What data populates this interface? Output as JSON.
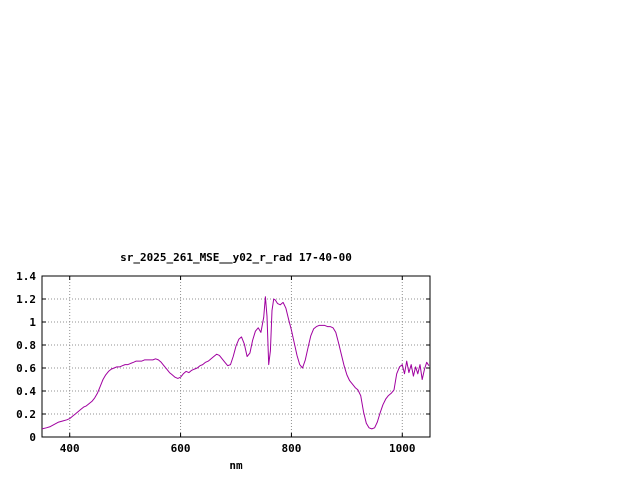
{
  "chart_data": {
    "type": "line",
    "title": "sr_2025_261_MSE__y02_r_rad 17-40-00",
    "xlabel": "nm",
    "ylabel": "",
    "xlim": [
      350,
      1050
    ],
    "ylim": [
      0,
      1.4
    ],
    "xticks": [
      400,
      600,
      800,
      1000
    ],
    "xtick_labels": [
      "400",
      "600",
      "800",
      "1000"
    ],
    "yticks": [
      0,
      0.2,
      0.4,
      0.6,
      0.8,
      1,
      1.2,
      1.4
    ],
    "ytick_labels": [
      "0",
      "0.2",
      "0.4",
      "0.6",
      "0.8",
      "1",
      "1.2",
      "1.4"
    ],
    "grid": true,
    "legend": "none",
    "line_color": "#a000a0",
    "grid_color": "#909090",
    "border_color": "#000000",
    "text_color": "#000000",
    "background_color": "#ffffff",
    "series": [
      {
        "points": [
          [
            350,
            0.07
          ],
          [
            358,
            0.08
          ],
          [
            365,
            0.09
          ],
          [
            372,
            0.11
          ],
          [
            380,
            0.13
          ],
          [
            388,
            0.14
          ],
          [
            395,
            0.15
          ],
          [
            400,
            0.16
          ],
          [
            405,
            0.18
          ],
          [
            410,
            0.2
          ],
          [
            415,
            0.22
          ],
          [
            420,
            0.24
          ],
          [
            425,
            0.26
          ],
          [
            430,
            0.27
          ],
          [
            435,
            0.29
          ],
          [
            440,
            0.31
          ],
          [
            445,
            0.34
          ],
          [
            450,
            0.38
          ],
          [
            455,
            0.44
          ],
          [
            460,
            0.5
          ],
          [
            465,
            0.54
          ],
          [
            470,
            0.57
          ],
          [
            475,
            0.59
          ],
          [
            480,
            0.6
          ],
          [
            485,
            0.61
          ],
          [
            490,
            0.61
          ],
          [
            495,
            0.62
          ],
          [
            500,
            0.63
          ],
          [
            505,
            0.63
          ],
          [
            510,
            0.64
          ],
          [
            515,
            0.65
          ],
          [
            520,
            0.66
          ],
          [
            525,
            0.66
          ],
          [
            530,
            0.66
          ],
          [
            535,
            0.67
          ],
          [
            540,
            0.67
          ],
          [
            545,
            0.67
          ],
          [
            550,
            0.67
          ],
          [
            555,
            0.68
          ],
          [
            560,
            0.67
          ],
          [
            565,
            0.65
          ],
          [
            570,
            0.62
          ],
          [
            575,
            0.59
          ],
          [
            580,
            0.56
          ],
          [
            585,
            0.54
          ],
          [
            590,
            0.52
          ],
          [
            595,
            0.51
          ],
          [
            600,
            0.52
          ],
          [
            605,
            0.55
          ],
          [
            610,
            0.57
          ],
          [
            615,
            0.56
          ],
          [
            620,
            0.58
          ],
          [
            625,
            0.59
          ],
          [
            630,
            0.6
          ],
          [
            635,
            0.62
          ],
          [
            640,
            0.63
          ],
          [
            645,
            0.65
          ],
          [
            650,
            0.66
          ],
          [
            655,
            0.68
          ],
          [
            660,
            0.7
          ],
          [
            665,
            0.72
          ],
          [
            670,
            0.71
          ],
          [
            675,
            0.68
          ],
          [
            680,
            0.65
          ],
          [
            685,
            0.62
          ],
          [
            690,
            0.63
          ],
          [
            695,
            0.7
          ],
          [
            700,
            0.79
          ],
          [
            705,
            0.85
          ],
          [
            710,
            0.87
          ],
          [
            715,
            0.81
          ],
          [
            720,
            0.7
          ],
          [
            725,
            0.73
          ],
          [
            730,
            0.84
          ],
          [
            735,
            0.92
          ],
          [
            740,
            0.95
          ],
          [
            745,
            0.91
          ],
          [
            750,
            1.04
          ],
          [
            753,
            1.22
          ],
          [
            756,
            1.05
          ],
          [
            759,
            0.63
          ],
          [
            762,
            0.75
          ],
          [
            765,
            1.1
          ],
          [
            768,
            1.2
          ],
          [
            771,
            1.19
          ],
          [
            775,
            1.16
          ],
          [
            780,
            1.15
          ],
          [
            785,
            1.17
          ],
          [
            790,
            1.12
          ],
          [
            795,
            1.02
          ],
          [
            800,
            0.93
          ],
          [
            805,
            0.82
          ],
          [
            810,
            0.71
          ],
          [
            815,
            0.63
          ],
          [
            820,
            0.6
          ],
          [
            825,
            0.67
          ],
          [
            830,
            0.78
          ],
          [
            835,
            0.88
          ],
          [
            840,
            0.94
          ],
          [
            845,
            0.96
          ],
          [
            850,
            0.97
          ],
          [
            855,
            0.97
          ],
          [
            860,
            0.97
          ],
          [
            865,
            0.96
          ],
          [
            870,
            0.96
          ],
          [
            875,
            0.95
          ],
          [
            880,
            0.91
          ],
          [
            885,
            0.82
          ],
          [
            890,
            0.72
          ],
          [
            895,
            0.62
          ],
          [
            900,
            0.54
          ],
          [
            905,
            0.49
          ],
          [
            910,
            0.46
          ],
          [
            915,
            0.43
          ],
          [
            920,
            0.41
          ],
          [
            925,
            0.36
          ],
          [
            930,
            0.22
          ],
          [
            935,
            0.12
          ],
          [
            940,
            0.08
          ],
          [
            945,
            0.07
          ],
          [
            950,
            0.08
          ],
          [
            955,
            0.13
          ],
          [
            960,
            0.21
          ],
          [
            965,
            0.28
          ],
          [
            970,
            0.33
          ],
          [
            975,
            0.36
          ],
          [
            980,
            0.38
          ],
          [
            985,
            0.41
          ],
          [
            990,
            0.55
          ],
          [
            995,
            0.61
          ],
          [
            1000,
            0.63
          ],
          [
            1004,
            0.55
          ],
          [
            1008,
            0.66
          ],
          [
            1012,
            0.56
          ],
          [
            1016,
            0.63
          ],
          [
            1020,
            0.53
          ],
          [
            1024,
            0.61
          ],
          [
            1028,
            0.55
          ],
          [
            1032,
            0.63
          ],
          [
            1036,
            0.5
          ],
          [
            1040,
            0.59
          ],
          [
            1044,
            0.65
          ],
          [
            1048,
            0.62
          ]
        ]
      }
    ]
  }
}
